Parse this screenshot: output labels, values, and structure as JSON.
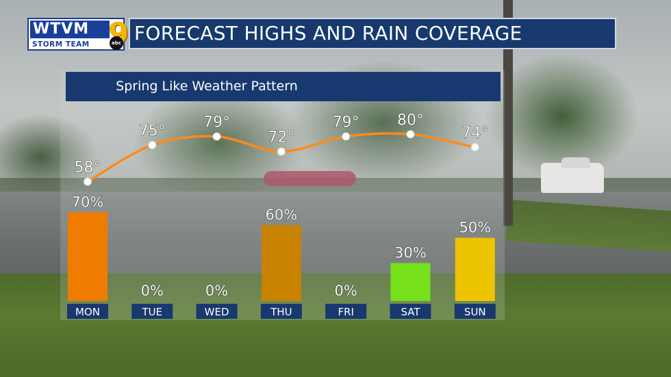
{
  "header": {
    "logo_text": "WTVM",
    "logo_subtext": "STORM TEAM",
    "logo_number": "9",
    "network": "abc",
    "title": "FORECAST HIGHS AND RAIN COVERAGE"
  },
  "chart_data": {
    "type": "bar",
    "title": "Spring Like Weather Pattern",
    "categories": [
      "MON",
      "TUE",
      "WED",
      "THU",
      "FRI",
      "SAT",
      "SUN"
    ],
    "series": [
      {
        "kind": "bar",
        "values": [
          70,
          0,
          0,
          60,
          0,
          30,
          50
        ],
        "labels": [
          "70%",
          "0%",
          "0%",
          "60%",
          "0%",
          "30%",
          "50%"
        ],
        "colors": [
          "#ef7c00",
          "#ef7c00",
          "#ef7c00",
          "#c98200",
          "#ef7c00",
          "#77e21b",
          "#eec300"
        ]
      },
      {
        "kind": "line",
        "values": [
          58,
          75,
          79,
          72,
          79,
          80,
          74
        ],
        "labels": [
          "58°",
          "75°",
          "79°",
          "72°",
          "79°",
          "80°",
          "74°"
        ],
        "color": "#ff8a1c",
        "curve": "smooth"
      }
    ],
    "ylim_bars": [
      0,
      100
    ],
    "ylim_line": [
      55,
      82
    ],
    "grid": false,
    "legend": "none"
  }
}
